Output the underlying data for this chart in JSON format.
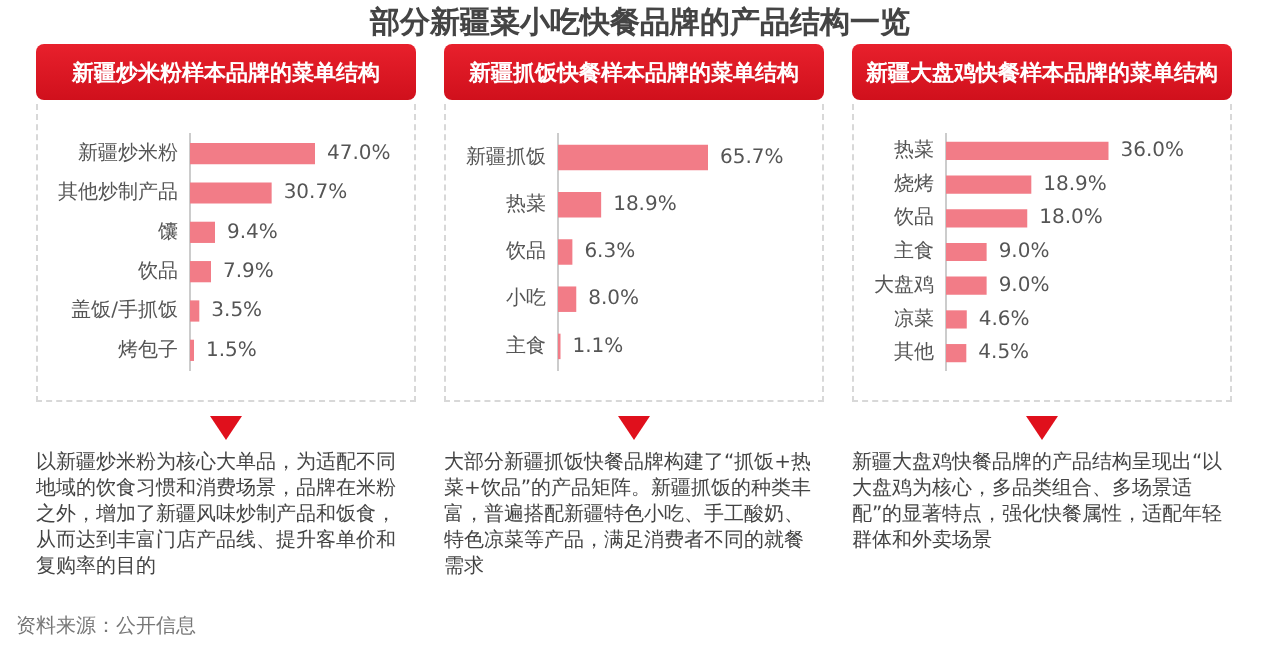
{
  "chart_data": [
    {
      "type": "bar",
      "orientation": "horizontal",
      "title": "新疆炒米粉样本品牌的菜单结构",
      "categories": [
        "新疆炒米粉",
        "其他炒制产品",
        "馕",
        "饮品",
        "盖饭/手抓饭",
        "烤包子"
      ],
      "values": [
        47.0,
        30.7,
        9.4,
        7.9,
        3.5,
        1.5
      ],
      "value_labels": [
        "47.0%",
        "30.7%",
        "9.4%",
        "7.9%",
        "3.5%",
        "1.5%"
      ],
      "color": "#f27c87",
      "annotations": [
        "以新疆炒米粉为核心大单品，为适配不同地域的饮食习惯和消费场景，品牌在米粉之外，增加了新疆风味炒制产品和饭食，从而达到丰富门店产品线、提升客单价和复购率的目的"
      ]
    },
    {
      "type": "bar",
      "orientation": "horizontal",
      "title": "新疆抓饭快餐样本品牌的菜单结构",
      "categories": [
        "新疆抓饭",
        "热菜",
        "饮品",
        "小吃",
        "主食"
      ],
      "values": [
        65.7,
        18.9,
        6.3,
        8.0,
        1.1
      ],
      "value_labels": [
        "65.7%",
        "18.9%",
        "6.3%",
        "8.0%",
        "1.1%"
      ],
      "color": "#f27c87",
      "annotations": [
        "大部分新疆抓饭快餐品牌构建了“抓饭+热菜+饮品”的产品矩阵。新疆抓饭的种类丰富，普遍搭配新疆特色小吃、手工酸奶、特色凉菜等产品，满足消费者不同的就餐需求"
      ]
    },
    {
      "type": "bar",
      "orientation": "horizontal",
      "title": "新疆大盘鸡快餐样本品牌的菜单结构",
      "categories": [
        "热菜",
        "烧烤",
        "饮品",
        "主食",
        "大盘鸡",
        "凉菜",
        "其他"
      ],
      "values": [
        36.0,
        18.9,
        18.0,
        9.0,
        9.0,
        4.6,
        4.5
      ],
      "value_labels": [
        "36.0%",
        "18.9%",
        "18.0%",
        "9.0%",
        "9.0%",
        "4.6%",
        "4.5%"
      ],
      "color": "#f27c87",
      "annotations": [
        "新疆大盘鸡快餐品牌的产品结构呈现出“以大盘鸡为核心，多品类组合、多场景适配”的显著特点，强化快餐属性，适配年轻群体和外卖场景"
      ]
    },
    {
      "type": "other",
      "title": "部分新疆菜小吃快餐品牌的产品结构一览",
      "annotations": [
        "资料来源：公开信息"
      ]
    }
  ]
}
